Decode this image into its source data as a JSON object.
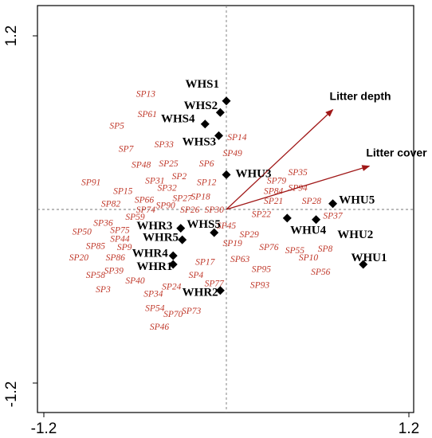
{
  "chart_data": {
    "type": "scatter",
    "title": "",
    "xlabel": "",
    "ylabel": "",
    "xlim": [
      -1.2,
      1.2
    ],
    "ylim": [
      -1.2,
      1.2
    ],
    "x_tick_labels": [
      "-1.2",
      "1.2"
    ],
    "y_tick_labels": [
      "1.2",
      "-1.2"
    ],
    "grid": false,
    "sites": [
      {
        "label": "WHS1",
        "x": 0.0,
        "y": 0.75,
        "label_x": -0.27,
        "label_y": 0.87
      },
      {
        "label": "WHS2",
        "x": -0.04,
        "y": 0.67,
        "label_x": -0.28,
        "label_y": 0.72
      },
      {
        "label": "WHS4",
        "x": -0.14,
        "y": 0.59,
        "label_x": -0.43,
        "label_y": 0.63
      },
      {
        "label": "WHS3",
        "x": -0.05,
        "y": 0.51,
        "label_x": -0.29,
        "label_y": 0.47
      },
      {
        "label": "WHU3",
        "x": 0.0,
        "y": 0.24,
        "label_x": 0.06,
        "label_y": 0.25
      },
      {
        "label": "WHU5",
        "x": 0.7,
        "y": 0.04,
        "label_x": 0.74,
        "label_y": 0.07
      },
      {
        "label": "WHU4",
        "x": 0.4,
        "y": -0.06,
        "label_x": 0.42,
        "label_y": -0.14
      },
      {
        "label": "WHU2",
        "x": 0.59,
        "y": -0.07,
        "label_x": 0.73,
        "label_y": -0.17
      },
      {
        "label": "WHU1",
        "x": 0.9,
        "y": -0.38,
        "label_x": 0.82,
        "label_y": -0.33
      },
      {
        "label": "WHR3",
        "x": -0.3,
        "y": -0.13,
        "label_x": -0.59,
        "label_y": -0.11
      },
      {
        "label": "WHR5",
        "x": -0.29,
        "y": -0.21,
        "label_x": -0.55,
        "label_y": -0.19
      },
      {
        "label": "WHS5",
        "x": -0.08,
        "y": -0.16,
        "label_x": -0.26,
        "label_y": -0.1
      },
      {
        "label": "WHR4",
        "x": -0.35,
        "y": -0.32,
        "label_x": -0.62,
        "label_y": -0.3
      },
      {
        "label": "WHR1",
        "x": -0.35,
        "y": -0.38,
        "label_x": -0.59,
        "label_y": -0.39
      },
      {
        "label": "WHR2",
        "x": -0.04,
        "y": -0.56,
        "label_x": -0.29,
        "label_y": -0.57
      }
    ],
    "species": [
      {
        "label": "SP13",
        "x": -0.53,
        "y": 0.8
      },
      {
        "label": "SP61",
        "x": -0.52,
        "y": 0.66
      },
      {
        "label": "SP5",
        "x": -0.72,
        "y": 0.58
      },
      {
        "label": "SP14",
        "x": 0.07,
        "y": 0.5
      },
      {
        "label": "SP7",
        "x": -0.66,
        "y": 0.42
      },
      {
        "label": "SP33",
        "x": -0.41,
        "y": 0.45
      },
      {
        "label": "SP49",
        "x": 0.04,
        "y": 0.39
      },
      {
        "label": "SP48",
        "x": -0.56,
        "y": 0.31
      },
      {
        "label": "SP25",
        "x": -0.38,
        "y": 0.32
      },
      {
        "label": "SP6",
        "x": -0.13,
        "y": 0.32
      },
      {
        "label": "SP35",
        "x": 0.47,
        "y": 0.26
      },
      {
        "label": "SP91",
        "x": -0.89,
        "y": 0.19
      },
      {
        "label": "SP31",
        "x": -0.47,
        "y": 0.2
      },
      {
        "label": "SP2",
        "x": -0.31,
        "y": 0.23
      },
      {
        "label": "SP12",
        "x": -0.13,
        "y": 0.19
      },
      {
        "label": "SP79",
        "x": 0.33,
        "y": 0.2
      },
      {
        "label": "SP15",
        "x": -0.68,
        "y": 0.13
      },
      {
        "label": "SP32",
        "x": -0.39,
        "y": 0.15
      },
      {
        "label": "SP84",
        "x": 0.31,
        "y": 0.13
      },
      {
        "label": "SP94",
        "x": 0.47,
        "y": 0.15
      },
      {
        "label": "SP18",
        "x": -0.17,
        "y": 0.09
      },
      {
        "label": "SP27",
        "x": -0.29,
        "y": 0.08
      },
      {
        "label": "SP66",
        "x": -0.54,
        "y": 0.07
      },
      {
        "label": "SP82",
        "x": -0.76,
        "y": 0.04
      },
      {
        "label": "SP90",
        "x": -0.4,
        "y": 0.03
      },
      {
        "label": "SP21",
        "x": 0.31,
        "y": 0.06
      },
      {
        "label": "SP28",
        "x": 0.56,
        "y": 0.06
      },
      {
        "label": "SP74",
        "x": -0.53,
        "y": 0.0
      },
      {
        "label": "SP26",
        "x": -0.24,
        "y": 0.0
      },
      {
        "label": "SP30",
        "x": -0.08,
        "y": 0.0
      },
      {
        "label": "SP22",
        "x": 0.23,
        "y": -0.03
      },
      {
        "label": "SP37",
        "x": 0.7,
        "y": -0.04
      },
      {
        "label": "SP59",
        "x": -0.6,
        "y": -0.05
      },
      {
        "label": "SP36",
        "x": -0.81,
        "y": -0.09
      },
      {
        "label": "SP45",
        "x": 0.0,
        "y": -0.11
      },
      {
        "label": "SP50",
        "x": -0.95,
        "y": -0.15
      },
      {
        "label": "SP75",
        "x": -0.7,
        "y": -0.14
      },
      {
        "label": "SP29",
        "x": 0.15,
        "y": -0.17
      },
      {
        "label": "SP44",
        "x": -0.7,
        "y": -0.2
      },
      {
        "label": "SP19",
        "x": 0.04,
        "y": -0.23
      },
      {
        "label": "SP85",
        "x": -0.86,
        "y": -0.25
      },
      {
        "label": "SP9",
        "x": -0.67,
        "y": -0.26
      },
      {
        "label": "SP76",
        "x": 0.28,
        "y": -0.26
      },
      {
        "label": "SP55",
        "x": 0.45,
        "y": -0.28
      },
      {
        "label": "SP8",
        "x": 0.65,
        "y": -0.27
      },
      {
        "label": "SP20",
        "x": -0.97,
        "y": -0.33
      },
      {
        "label": "SP86",
        "x": -0.73,
        "y": -0.33
      },
      {
        "label": "SP10",
        "x": 0.54,
        "y": -0.33
      },
      {
        "label": "SP63",
        "x": 0.09,
        "y": -0.34
      },
      {
        "label": "SP17",
        "x": -0.14,
        "y": -0.36
      },
      {
        "label": "SP39",
        "x": -0.74,
        "y": -0.42
      },
      {
        "label": "SP95",
        "x": 0.23,
        "y": -0.41
      },
      {
        "label": "SP56",
        "x": 0.62,
        "y": -0.43
      },
      {
        "label": "SP58",
        "x": -0.86,
        "y": -0.45
      },
      {
        "label": "SP4",
        "x": -0.2,
        "y": -0.45
      },
      {
        "label": "SP40",
        "x": -0.6,
        "y": -0.49
      },
      {
        "label": "SP77",
        "x": -0.08,
        "y": -0.51
      },
      {
        "label": "SP24",
        "x": -0.36,
        "y": -0.53
      },
      {
        "label": "SP93",
        "x": 0.22,
        "y": -0.52
      },
      {
        "label": "SP3",
        "x": -0.81,
        "y": -0.55
      },
      {
        "label": "SP34",
        "x": -0.48,
        "y": -0.58
      },
      {
        "label": "SP54",
        "x": -0.47,
        "y": -0.68
      },
      {
        "label": "SP73",
        "x": -0.23,
        "y": -0.7
      },
      {
        "label": "SP70",
        "x": -0.35,
        "y": -0.72
      },
      {
        "label": "SP46",
        "x": -0.44,
        "y": -0.81
      }
    ],
    "vectors": [
      {
        "label": "Litter depth",
        "x": 0.7,
        "y": 0.69
      },
      {
        "label": "Litter cover",
        "x": 0.94,
        "y": 0.3
      }
    ]
  }
}
